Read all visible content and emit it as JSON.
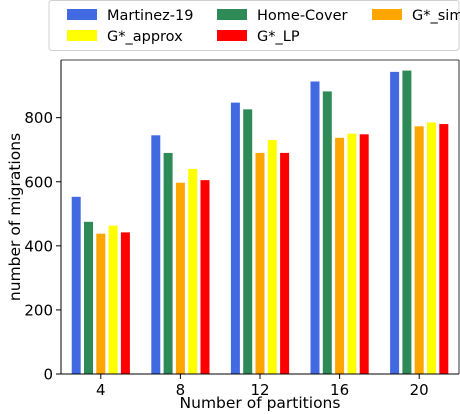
{
  "chart_data": {
    "type": "bar",
    "title": "",
    "xlabel": "Number of partitions",
    "ylabel": "number of migrations",
    "categories": [
      "4",
      "8",
      "12",
      "16",
      "20"
    ],
    "ylim": [
      0,
      980
    ],
    "yticks": [
      0,
      200,
      400,
      600,
      800
    ],
    "grid": false,
    "legend_position": "top",
    "series": [
      {
        "name": "Martinez-19",
        "color": "#4169e1",
        "values": [
          553,
          745,
          847,
          913,
          943
        ]
      },
      {
        "name": "Home-Cover",
        "color": "#2e8b57",
        "values": [
          475,
          690,
          826,
          882,
          947
        ]
      },
      {
        "name": "G*_simple",
        "color": "#ffa500",
        "values": [
          438,
          597,
          690,
          737,
          773
        ]
      },
      {
        "name": "G*_approx",
        "color": "#ffff00",
        "values": [
          463,
          640,
          730,
          750,
          785
        ]
      },
      {
        "name": "G*_LP",
        "color": "#ff0000",
        "values": [
          442,
          605,
          690,
          748,
          780
        ]
      }
    ]
  }
}
